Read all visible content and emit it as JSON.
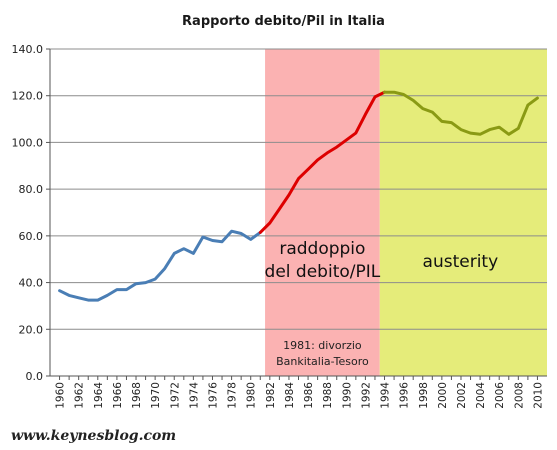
{
  "chart_data": {
    "type": "line",
    "title": "Rapporto debito/Pil in Italia",
    "xlabel": "",
    "ylabel": "",
    "ylim": [
      0,
      140
    ],
    "yticks": [
      "0.0",
      "20.0",
      "40.0",
      "60.0",
      "80.0",
      "100.0",
      "120.0",
      "140.0"
    ],
    "ytick_values": [
      0,
      20,
      40,
      60,
      80,
      100,
      120,
      140
    ],
    "xlim": [
      1959,
      2011
    ],
    "xticks": [
      "1960",
      "1962",
      "1964",
      "1966",
      "1968",
      "1970",
      "1972",
      "1974",
      "1976",
      "1978",
      "1980",
      "1982",
      "1984",
      "1986",
      "1988",
      "1990",
      "1992",
      "1994",
      "1996",
      "1998",
      "2000",
      "2002",
      "2004",
      "2006",
      "2008",
      "2010"
    ],
    "grid": "horizontal",
    "regions": [
      {
        "from": 1981.5,
        "to": 1993.5,
        "color": "#fbb2b2",
        "label_main": "raddoppio\ndel debito/PIL",
        "label_sub": "1981: divorzio\nBankitalia-Tesoro"
      },
      {
        "from": 1993.5,
        "to": 2011,
        "color": "#e5ec7a",
        "label_main": "austerity",
        "label_sub": ""
      }
    ],
    "series": [
      {
        "color": "#4a7eb5",
        "x": [
          1960,
          1961,
          1962,
          1963,
          1964,
          1965,
          1966,
          1967,
          1968,
          1969,
          1970,
          1971,
          1972,
          1973,
          1974,
          1975,
          1976,
          1977,
          1978,
          1979,
          1980,
          1981
        ],
        "values": [
          36.5,
          34.5,
          33.5,
          32.5,
          32.5,
          34.5,
          37.0,
          37.0,
          39.5,
          40.0,
          41.5,
          46.0,
          52.5,
          54.5,
          52.5,
          59.5,
          58.0,
          57.5,
          62.0,
          61.0,
          58.5,
          61.5
        ]
      },
      {
        "color": "#dd0000",
        "x": [
          1981,
          1982,
          1983,
          1984,
          1985,
          1986,
          1987,
          1988,
          1989,
          1990,
          1991,
          1992,
          1993,
          1994
        ],
        "values": [
          61.5,
          65.5,
          71.5,
          77.5,
          84.5,
          88.5,
          92.5,
          95.5,
          98.0,
          101.0,
          104.0,
          112.0,
          119.5,
          121.5
        ]
      },
      {
        "color": "#8a9a14",
        "x": [
          1994,
          1995,
          1996,
          1997,
          1998,
          1999,
          2000,
          2001,
          2002,
          2003,
          2004,
          2005,
          2006,
          2007,
          2008,
          2009,
          2010
        ],
        "values": [
          121.5,
          121.5,
          120.5,
          118.0,
          114.5,
          113.0,
          109.0,
          108.5,
          105.5,
          104.0,
          103.5,
          105.5,
          106.5,
          103.5,
          106.0,
          116.0,
          119.0
        ]
      }
    ]
  },
  "footer": {
    "text": "www.keynesblog.com"
  }
}
